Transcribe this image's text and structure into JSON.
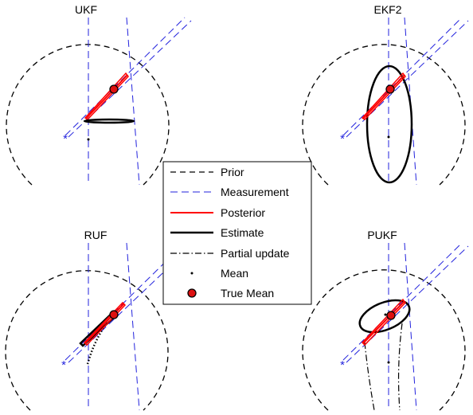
{
  "panels": [
    {
      "id": "ukf",
      "title": "UKF"
    },
    {
      "id": "ekf2",
      "title": "EKF2"
    },
    {
      "id": "ruf",
      "title": "RUF"
    },
    {
      "id": "pukf",
      "title": "PUKF"
    }
  ],
  "legend": {
    "items": [
      {
        "label": "Prior",
        "style": "dashed-black"
      },
      {
        "label": "Measurement",
        "style": "dashed-blue"
      },
      {
        "label": "Posterior",
        "style": "solid-red"
      },
      {
        "label": "Estimate",
        "style": "solid-black-thick"
      },
      {
        "label": "Partial update",
        "style": "dashdot-black"
      },
      {
        "label": "Mean",
        "style": "dot"
      },
      {
        "label": "True Mean",
        "style": "red-circle"
      }
    ]
  },
  "colors": {
    "prior": "#000000",
    "measurement": "#2222dd",
    "posterior": "#ff0000",
    "estimate": "#000000",
    "true_mean_fill": "#dd1111"
  }
}
